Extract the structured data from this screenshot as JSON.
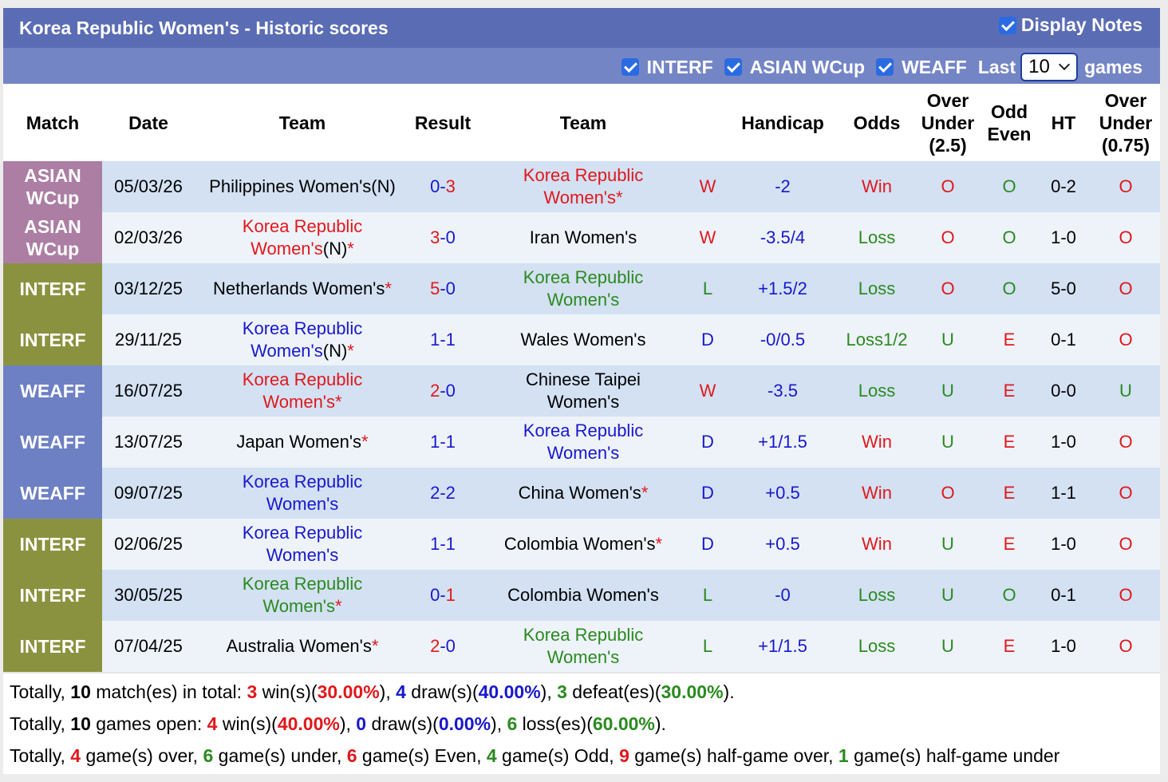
{
  "header": {
    "title": "Korea Republic Women's - Historic scores",
    "display_notes_label": "Display Notes",
    "display_notes_checked": true
  },
  "filters": {
    "items": [
      {
        "label": "INTERF",
        "checked": true
      },
      {
        "label": "ASIAN WCup",
        "checked": true
      },
      {
        "label": "WEAFF",
        "checked": true
      }
    ],
    "last_label": "Last",
    "last_value": "10",
    "games_label": "games"
  },
  "columns": {
    "match": "Match",
    "date": "Date",
    "home_team": "Team",
    "result": "Result",
    "away_team": "Team",
    "handicap": "Handicap",
    "odds": "Odds",
    "over_under_line1": "Over",
    "over_under_line2": "Under",
    "over_under_line3": "(2.5)",
    "odd_even_line1": "Odd",
    "odd_even_line2": "Even",
    "ht": "HT",
    "over_under_ht_line1": "Over",
    "over_under_ht_line2": "Under",
    "over_under_ht_line3": "(0.75)"
  },
  "colors": {
    "asian": "#ac7ea4",
    "interf": "#8b923f",
    "weaff": "#6e80c4",
    "red": "#e0181c",
    "blue": "#1818cc",
    "green": "#2a8a1f",
    "title_bar": "#5a6cb4",
    "filter_bar": "#7485c6"
  },
  "rows": [
    {
      "comp1": "ASIAN",
      "comp2": "WCup",
      "comp_type": "asian",
      "date": "05/03/26",
      "home_l1": "Philippines Women's(N)",
      "home_l2": "",
      "home_star": "",
      "home_color": "black",
      "score_h": "0",
      "score_sep": "-",
      "score_a": "3",
      "score_h_color": "blue",
      "score_a_color": "red",
      "away_l1": "Korea Republic",
      "away_l2": "Women's",
      "away_star": "*",
      "away_color": "red",
      "wdl": "W",
      "wdl_color": "red",
      "handicap": "-2",
      "odds": "Win",
      "odds_color": "red",
      "ou": "O",
      "ou_color": "red",
      "oe": "O",
      "oe_color": "green",
      "ht": "0-2",
      "ou_ht": "O",
      "ou_ht_color": "red"
    },
    {
      "comp1": "ASIAN",
      "comp2": "WCup",
      "comp_type": "asian",
      "date": "02/03/26",
      "home_l1": "Korea Republic",
      "home_l2": "Women's",
      "home_suffix": "(N)",
      "home_star": "*",
      "home_color": "red",
      "score_h": "3",
      "score_sep": "-",
      "score_a": "0",
      "score_h_color": "red",
      "score_a_color": "blue",
      "away_l1": "Iran Women's",
      "away_l2": "",
      "away_star": "",
      "away_color": "black",
      "wdl": "W",
      "wdl_color": "red",
      "handicap": "-3.5/4",
      "odds": "Loss",
      "odds_color": "green",
      "ou": "O",
      "ou_color": "red",
      "oe": "O",
      "oe_color": "green",
      "ht": "1-0",
      "ou_ht": "O",
      "ou_ht_color": "red"
    },
    {
      "comp1": "INTERF",
      "comp2": "",
      "comp_type": "interf",
      "date": "03/12/25",
      "home_l1": "Netherlands Women's",
      "home_l2": "",
      "home_star": "*",
      "home_color": "black",
      "score_h": "5",
      "score_sep": "-",
      "score_a": "0",
      "score_h_color": "red",
      "score_a_color": "blue",
      "away_l1": "Korea Republic",
      "away_l2": "Women's",
      "away_star": "",
      "away_color": "green",
      "wdl": "L",
      "wdl_color": "green",
      "handicap": "+1.5/2",
      "odds": "Loss",
      "odds_color": "green",
      "ou": "O",
      "ou_color": "red",
      "oe": "O",
      "oe_color": "green",
      "ht": "5-0",
      "ou_ht": "O",
      "ou_ht_color": "red"
    },
    {
      "comp1": "INTERF",
      "comp2": "",
      "comp_type": "interf",
      "date": "29/11/25",
      "home_l1": "Korea Republic",
      "home_l2": "Women's",
      "home_suffix": "(N)",
      "home_star": "*",
      "home_color": "blue",
      "score_h": "1",
      "score_sep": "-",
      "score_a": "1",
      "score_h_color": "blue",
      "score_a_color": "blue",
      "away_l1": "Wales Women's",
      "away_l2": "",
      "away_star": "",
      "away_color": "black",
      "wdl": "D",
      "wdl_color": "blue",
      "handicap": "-0/0.5",
      "odds": "Loss1/2",
      "odds_color": "green",
      "ou": "U",
      "ou_color": "green",
      "oe": "E",
      "oe_color": "red",
      "ht": "0-1",
      "ou_ht": "O",
      "ou_ht_color": "red"
    },
    {
      "comp1": "WEAFF",
      "comp2": "",
      "comp_type": "weaff",
      "date": "16/07/25",
      "home_l1": "Korea Republic",
      "home_l2": "Women's",
      "home_star": "*",
      "home_color": "red",
      "score_h": "2",
      "score_sep": "-",
      "score_a": "0",
      "score_h_color": "red",
      "score_a_color": "blue",
      "away_l1": "Chinese Taipei",
      "away_l2": "Women's",
      "away_star": "",
      "away_color": "black",
      "wdl": "W",
      "wdl_color": "red",
      "handicap": "-3.5",
      "odds": "Loss",
      "odds_color": "green",
      "ou": "U",
      "ou_color": "green",
      "oe": "E",
      "oe_color": "red",
      "ht": "0-0",
      "ou_ht": "U",
      "ou_ht_color": "green"
    },
    {
      "comp1": "WEAFF",
      "comp2": "",
      "comp_type": "weaff",
      "date": "13/07/25",
      "home_l1": "Japan Women's",
      "home_l2": "",
      "home_star": "*",
      "home_color": "black",
      "score_h": "1",
      "score_sep": "-",
      "score_a": "1",
      "score_h_color": "blue",
      "score_a_color": "blue",
      "away_l1": "Korea Republic",
      "away_l2": "Women's",
      "away_star": "",
      "away_color": "blue",
      "wdl": "D",
      "wdl_color": "blue",
      "handicap": "+1/1.5",
      "odds": "Win",
      "odds_color": "red",
      "ou": "U",
      "ou_color": "green",
      "oe": "E",
      "oe_color": "red",
      "ht": "1-0",
      "ou_ht": "O",
      "ou_ht_color": "red"
    },
    {
      "comp1": "WEAFF",
      "comp2": "",
      "comp_type": "weaff",
      "date": "09/07/25",
      "home_l1": "Korea Republic",
      "home_l2": "Women's",
      "home_star": "",
      "home_color": "blue",
      "score_h": "2",
      "score_sep": "-",
      "score_a": "2",
      "score_h_color": "blue",
      "score_a_color": "blue",
      "away_l1": "China Women's",
      "away_l2": "",
      "away_star": "*",
      "away_color": "black",
      "wdl": "D",
      "wdl_color": "blue",
      "handicap": "+0.5",
      "odds": "Win",
      "odds_color": "red",
      "ou": "O",
      "ou_color": "red",
      "oe": "E",
      "oe_color": "red",
      "ht": "1-1",
      "ou_ht": "O",
      "ou_ht_color": "red"
    },
    {
      "comp1": "INTERF",
      "comp2": "",
      "comp_type": "interf",
      "date": "02/06/25",
      "home_l1": "Korea Republic",
      "home_l2": "Women's",
      "home_star": "",
      "home_color": "blue",
      "score_h": "1",
      "score_sep": "-",
      "score_a": "1",
      "score_h_color": "blue",
      "score_a_color": "blue",
      "away_l1": "Colombia Women's",
      "away_l2": "",
      "away_star": "*",
      "away_color": "black",
      "wdl": "D",
      "wdl_color": "blue",
      "handicap": "+0.5",
      "odds": "Win",
      "odds_color": "red",
      "ou": "U",
      "ou_color": "green",
      "oe": "E",
      "oe_color": "red",
      "ht": "1-0",
      "ou_ht": "O",
      "ou_ht_color": "red"
    },
    {
      "comp1": "INTERF",
      "comp2": "",
      "comp_type": "interf",
      "date": "30/05/25",
      "home_l1": "Korea Republic",
      "home_l2": "Women's",
      "home_star": "*",
      "home_color": "green",
      "score_h": "0",
      "score_sep": "-",
      "score_a": "1",
      "score_h_color": "blue",
      "score_a_color": "red",
      "away_l1": "Colombia Women's",
      "away_l2": "",
      "away_star": "",
      "away_color": "black",
      "wdl": "L",
      "wdl_color": "green",
      "handicap": "-0",
      "odds": "Loss",
      "odds_color": "green",
      "ou": "U",
      "ou_color": "green",
      "oe": "O",
      "oe_color": "green",
      "ht": "0-1",
      "ou_ht": "O",
      "ou_ht_color": "red"
    },
    {
      "comp1": "INTERF",
      "comp2": "",
      "comp_type": "interf",
      "date": "07/04/25",
      "home_l1": "Australia Women's",
      "home_l2": "",
      "home_star": "*",
      "home_color": "black",
      "score_h": "2",
      "score_sep": "-",
      "score_a": "0",
      "score_h_color": "red",
      "score_a_color": "blue",
      "away_l1": "Korea Republic",
      "away_l2": "Women's",
      "away_star": "",
      "away_color": "green",
      "wdl": "L",
      "wdl_color": "green",
      "handicap": "+1/1.5",
      "odds": "Loss",
      "odds_color": "green",
      "ou": "U",
      "ou_color": "green",
      "oe": "E",
      "oe_color": "red",
      "ht": "1-0",
      "ou_ht": "O",
      "ou_ht_color": "red"
    }
  ],
  "summary": [
    [
      {
        "t": "Totally, ",
        "c": "black"
      },
      {
        "t": "10",
        "c": "black",
        "b": true
      },
      {
        "t": " match(es) in total: ",
        "c": "black"
      },
      {
        "t": "3",
        "c": "red",
        "b": true
      },
      {
        "t": " win(s)(",
        "c": "black"
      },
      {
        "t": "30.00%",
        "c": "red",
        "b": true
      },
      {
        "t": "), ",
        "c": "black"
      },
      {
        "t": "4",
        "c": "blue",
        "b": true
      },
      {
        "t": " draw(s)(",
        "c": "black"
      },
      {
        "t": "40.00%",
        "c": "blue",
        "b": true
      },
      {
        "t": "), ",
        "c": "black"
      },
      {
        "t": "3",
        "c": "green",
        "b": true
      },
      {
        "t": " defeat(es)(",
        "c": "black"
      },
      {
        "t": "30.00%",
        "c": "green",
        "b": true
      },
      {
        "t": ").",
        "c": "black"
      }
    ],
    [
      {
        "t": "Totally, ",
        "c": "black"
      },
      {
        "t": "10",
        "c": "black",
        "b": true
      },
      {
        "t": " games open: ",
        "c": "black"
      },
      {
        "t": "4",
        "c": "red",
        "b": true
      },
      {
        "t": " win(s)(",
        "c": "black"
      },
      {
        "t": "40.00%",
        "c": "red",
        "b": true
      },
      {
        "t": "), ",
        "c": "black"
      },
      {
        "t": "0",
        "c": "blue",
        "b": true
      },
      {
        "t": " draw(s)(",
        "c": "black"
      },
      {
        "t": "0.00%",
        "c": "blue",
        "b": true
      },
      {
        "t": "), ",
        "c": "black"
      },
      {
        "t": "6",
        "c": "green",
        "b": true
      },
      {
        "t": " loss(es)(",
        "c": "black"
      },
      {
        "t": "60.00%",
        "c": "green",
        "b": true
      },
      {
        "t": ").",
        "c": "black"
      }
    ],
    [
      {
        "t": "Totally, ",
        "c": "black"
      },
      {
        "t": "4",
        "c": "red",
        "b": true
      },
      {
        "t": " game(s) over, ",
        "c": "black"
      },
      {
        "t": "6",
        "c": "green",
        "b": true
      },
      {
        "t": " game(s) under, ",
        "c": "black"
      },
      {
        "t": "6",
        "c": "red",
        "b": true
      },
      {
        "t": " game(s) Even, ",
        "c": "black"
      },
      {
        "t": "4",
        "c": "green",
        "b": true
      },
      {
        "t": " game(s) Odd, ",
        "c": "black"
      },
      {
        "t": "9",
        "c": "red",
        "b": true
      },
      {
        "t": " game(s) half-game over, ",
        "c": "black"
      },
      {
        "t": "1",
        "c": "green",
        "b": true
      },
      {
        "t": " game(s) half-game under",
        "c": "black"
      }
    ]
  ]
}
